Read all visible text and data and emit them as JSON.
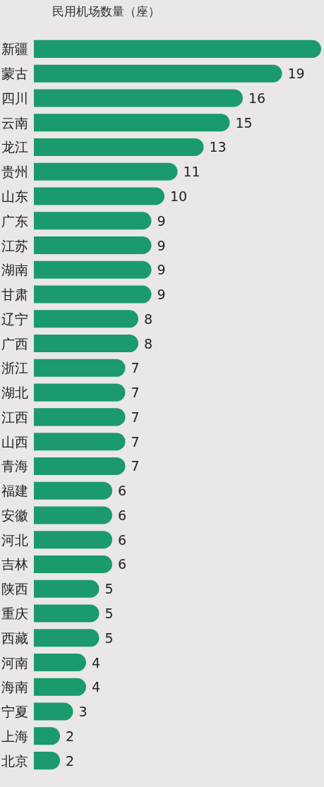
{
  "chart_data": {
    "type": "bar",
    "orientation": "horizontal",
    "title": "民用机场数量（座）",
    "categories": [
      "新疆",
      "蒙古",
      "四川",
      "云南",
      "龙江",
      "贵州",
      "山东",
      "广东",
      "江苏",
      "湖南",
      "甘肃",
      "辽宁",
      "广西",
      "浙江",
      "湖北",
      "江西",
      "山西",
      "青海",
      "福建",
      "安徽",
      "河北",
      "吉林",
      "陕西",
      "重庆",
      "西藏",
      "河南",
      "海南",
      "宁夏",
      "上海",
      "北京"
    ],
    "values": [
      22,
      19,
      16,
      15,
      13,
      11,
      10,
      9,
      9,
      9,
      9,
      8,
      8,
      7,
      7,
      7,
      7,
      7,
      6,
      6,
      6,
      6,
      5,
      5,
      5,
      4,
      4,
      3,
      2,
      2
    ],
    "value_labels": [
      null,
      "19",
      "16",
      "15",
      "13",
      "11",
      "10",
      "9",
      "9",
      "9",
      "9",
      "8",
      "8",
      "7",
      "7",
      "7",
      "7",
      "7",
      "6",
      "6",
      "6",
      "6",
      "5",
      "5",
      "5",
      "4",
      "4",
      "3",
      "2",
      "2"
    ],
    "color": "#1b9a6b"
  }
}
